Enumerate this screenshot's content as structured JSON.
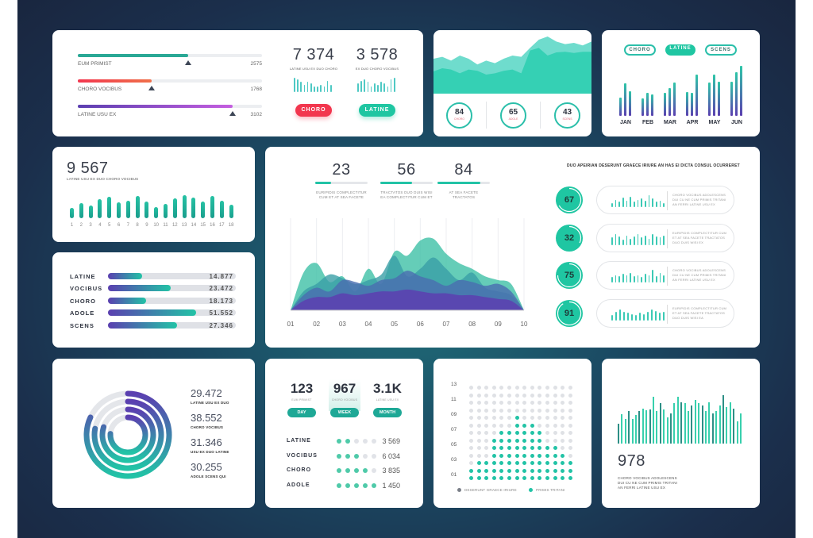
{
  "colors": {
    "teal": "#22c3a6",
    "purple": "#5b3fb0",
    "red": "#f2364e",
    "gray": "#e1e3e8",
    "dark": "#2f3440"
  },
  "progress_card": {
    "rows": [
      {
        "label": "EUM PRIMIST",
        "value": "2575",
        "fraction": 0.6,
        "color": "#2aa895"
      },
      {
        "label": "CHORO VOCIBUS",
        "value": "1768",
        "fraction": 0.4,
        "color": "#f0444f"
      },
      {
        "label": "LATINE USU EX",
        "value": "3102",
        "fraction": 0.84,
        "color": "#7a4fd0"
      }
    ],
    "stats": [
      {
        "value": "7 374",
        "caption": "LATINE USU EX DUO CHORO",
        "button": "CHORO",
        "button_color": "#f2364e",
        "bars": [
          10,
          9,
          7,
          5,
          7,
          6,
          4,
          4,
          5,
          4,
          8,
          5
        ]
      },
      {
        "value": "3 578",
        "caption": "EX DUO CHORO VOCIBUS",
        "bars": [
          6,
          8,
          9,
          7,
          4,
          6,
          5,
          7,
          6,
          4,
          9,
          10
        ],
        "button": "LATINE",
        "button_color": "#1fc6a2"
      }
    ]
  },
  "area_card": {
    "series_back": [
      55,
      58,
      52,
      60,
      55,
      46,
      52,
      48,
      55,
      60,
      58,
      72,
      85,
      90,
      82,
      78,
      80,
      76,
      82
    ],
    "series_front": [
      35,
      40,
      38,
      32,
      38,
      36,
      30,
      32,
      36,
      38,
      32,
      68,
      72,
      60,
      65,
      66,
      64,
      66,
      66
    ],
    "gauges": [
      {
        "value": "84",
        "label": "CHORO"
      },
      {
        "value": "65",
        "label": "ADOLE"
      },
      {
        "value": "43",
        "label": "SCENS"
      }
    ]
  },
  "month_card": {
    "filters": [
      {
        "label": "CHORO",
        "active": false
      },
      {
        "label": "LATINE",
        "active": true
      },
      {
        "label": "SCENS",
        "active": false
      }
    ],
    "months": [
      {
        "label": "JAN",
        "values": [
          45,
          78,
          60
        ]
      },
      {
        "label": "FEB",
        "values": [
          43,
          55,
          52
        ]
      },
      {
        "label": "MAR",
        "values": [
          55,
          68,
          80
        ]
      },
      {
        "label": "APR",
        "values": [
          57,
          55,
          100
        ]
      },
      {
        "label": "MAY",
        "values": [
          80,
          100,
          82
        ]
      },
      {
        "label": "JUN",
        "values": [
          82,
          105,
          122
        ]
      }
    ]
  },
  "column_card": {
    "value": "9 567",
    "caption": "LATINE USU EX DUO CHORO VOCIBUS",
    "labels": [
      "1",
      "2",
      "3",
      "4",
      "5",
      "6",
      "7",
      "8",
      "9",
      "10",
      "11",
      "12",
      "13",
      "14",
      "15",
      "16",
      "17",
      "18"
    ],
    "values": [
      40,
      60,
      50,
      75,
      85,
      62,
      70,
      88,
      65,
      45,
      55,
      78,
      90,
      80,
      65,
      88,
      70,
      52
    ]
  },
  "hbar_card": {
    "rows": [
      {
        "label": "LATINE",
        "value": "14.877",
        "fraction": 0.27
      },
      {
        "label": "VOCIBUS",
        "value": "23.472",
        "fraction": 0.49
      },
      {
        "label": "CHORO",
        "value": "18.173",
        "fraction": 0.3
      },
      {
        "label": "ADOLE",
        "value": "51.552",
        "fraction": 0.69
      },
      {
        "label": "SCENS",
        "value": "27.346",
        "fraction": 0.54
      }
    ]
  },
  "main_card": {
    "stats": [
      {
        "value": "23",
        "caption": "EURIPIDIS COMPLECTITUR CUM ET AT SEA FACETE",
        "fraction": 0.3
      },
      {
        "value": "56",
        "caption": "TRACTATOS DUO DUIS WISI EA COMPLECTITUR CUM ET",
        "fraction": 0.6
      },
      {
        "value": "84",
        "caption": "AT SEA FACETE TRACTATOS",
        "fraction": 0.82
      }
    ],
    "header": "DUO APEIRIAN DESERUNT GRAECE IRIURE AN HAS EI DICTA CONSUL OCURRERET",
    "gauges": [
      {
        "value": "67",
        "fraction": 0.67,
        "text": "CHORO VOCIBUS ADOLESCENS DUI CU NE CUM PRIMIS TRITANI AN FERRI LATINE USU EX",
        "bars": [
          4,
          7,
          5,
          9,
          6,
          10,
          5,
          7,
          8,
          6,
          11,
          8,
          5,
          6,
          4
        ]
      },
      {
        "value": "32",
        "fraction": 0.32,
        "text": "EURIPIDIS COMPLECTITUR CUM ET AT SEA FACETE TRACTATOS DUO DUIS WISI EX",
        "bars": [
          7,
          10,
          8,
          5,
          9,
          6,
          8,
          10,
          7,
          9,
          6,
          10,
          8,
          7,
          9
        ]
      },
      {
        "value": "75",
        "fraction": 0.75,
        "text": "CHORO VOCIBUS ADOLESCENS DUI CU NE CUM PRIMIS TRITANI AN FERRI LATINE USU EX",
        "bars": [
          5,
          7,
          6,
          8,
          7,
          9,
          6,
          7,
          5,
          8,
          7,
          12,
          6,
          9,
          7
        ]
      },
      {
        "value": "91",
        "fraction": 0.91,
        "text": "EURIPIDIS COMPLECTITUR CUM ET AT SEA FACETE TRACTATOS DUO DUIS WISI EA",
        "bars": [
          5,
          8,
          10,
          8,
          7,
          6,
          5,
          7,
          6,
          8,
          10,
          9,
          7,
          8
        ]
      }
    ]
  },
  "chart_data": {
    "type": "area",
    "x_ticks": [
      "01",
      "02",
      "03",
      "04",
      "05",
      "06",
      "07",
      "08",
      "09",
      "10"
    ],
    "x": [
      1,
      1.5,
      2,
      2.5,
      3,
      3.5,
      4,
      4.5,
      5,
      5.5,
      6,
      6.5,
      7,
      7.5,
      8,
      8.5,
      9,
      9.5,
      10
    ],
    "ylim": [
      0,
      4
    ],
    "grid": "vertical",
    "series": [
      {
        "color": "#3fc1a6",
        "values": [
          0,
          2,
          2.5,
          1.5,
          1.8,
          1,
          2.2,
          1.4,
          3.1,
          2.9,
          3.7,
          3.8,
          3,
          2.5,
          2.2,
          1.8,
          1.6,
          1.4,
          0
        ]
      },
      {
        "color": "#3a9fa6",
        "values": [
          0,
          1,
          1.4,
          1.9,
          1.7,
          1.4,
          1.6,
          1.9,
          2.9,
          1.8,
          2.2,
          2.8,
          2.2,
          1.6,
          2,
          1.2,
          1,
          0.8,
          0
        ]
      },
      {
        "color": "#4a6db0",
        "values": [
          0,
          0.8,
          1.2,
          1,
          1.6,
          1.5,
          1.3,
          1.6,
          1.7,
          2.1,
          1.8,
          1.6,
          1.3,
          1.6,
          1.5,
          1.3,
          1.4,
          1,
          0
        ]
      },
      {
        "color": "#5b45b0",
        "values": [
          0,
          0.5,
          0.7,
          0.7,
          0.9,
          0.8,
          0.9,
          1,
          1,
          1.1,
          1,
          0.9,
          0.9,
          0.8,
          0.8,
          0.7,
          0.6,
          0.5,
          0
        ]
      }
    ]
  },
  "ring_card": {
    "rings": [
      0.82,
      0.78,
      0.8,
      0.76
    ],
    "items": [
      {
        "value": "29.472",
        "caption": "LATINE USU EX DUO"
      },
      {
        "value": "38.552",
        "caption": "CHORO VOCIBUS"
      },
      {
        "value": "31.346",
        "caption": "USU EX DUO LATINE"
      },
      {
        "value": "30.255",
        "caption": "ADOLE SCENS QUI"
      }
    ]
  },
  "period_card": {
    "periods": [
      {
        "value": "123",
        "caption": "EUM PRIMIST",
        "button": "DAY"
      },
      {
        "value": "967",
        "caption": "CHORO VOCIBUS",
        "button": "WEEK",
        "selected": true
      },
      {
        "value": "3.1K",
        "caption": "LATINE USU EX",
        "button": "MONTH"
      }
    ],
    "rows": [
      {
        "label": "LATINE",
        "dots": 2,
        "value": "3 569"
      },
      {
        "label": "VOCIBUS",
        "dots": 3,
        "value": "6 034"
      },
      {
        "label": "CHORO",
        "dots": 4,
        "value": "3 835"
      },
      {
        "label": "ADOLE",
        "dots": 5,
        "value": "1 450"
      }
    ]
  },
  "dot_card": {
    "row_labels": [
      "13",
      "11",
      "09",
      "07",
      "05",
      "03",
      "01"
    ],
    "column_heights": [
      2,
      3,
      3,
      6,
      7,
      7,
      9,
      8,
      8,
      7,
      5,
      5,
      4,
      3
    ],
    "rows": 13,
    "legend": [
      {
        "label": "DESERUNT GRAECE IRIURE",
        "color": "#7a7f88"
      },
      {
        "label": "PRIMIS TRITANI",
        "color": "#22c3a6"
      }
    ]
  },
  "wave_card": {
    "value": "978",
    "caption": "CHORO VOCIBUS ADOLESCENS DUI CU NE CUM PRIMIS TRITANI AN FERRI LATINE USU EX",
    "values": [
      30,
      45,
      38,
      50,
      38,
      44,
      50,
      54,
      51,
      53,
      72,
      50,
      62,
      52,
      40,
      46,
      62,
      72,
      64,
      62,
      50,
      58,
      67,
      62,
      58,
      50,
      64,
      46,
      50,
      58,
      74,
      56,
      64,
      54,
      34,
      46
    ]
  }
}
